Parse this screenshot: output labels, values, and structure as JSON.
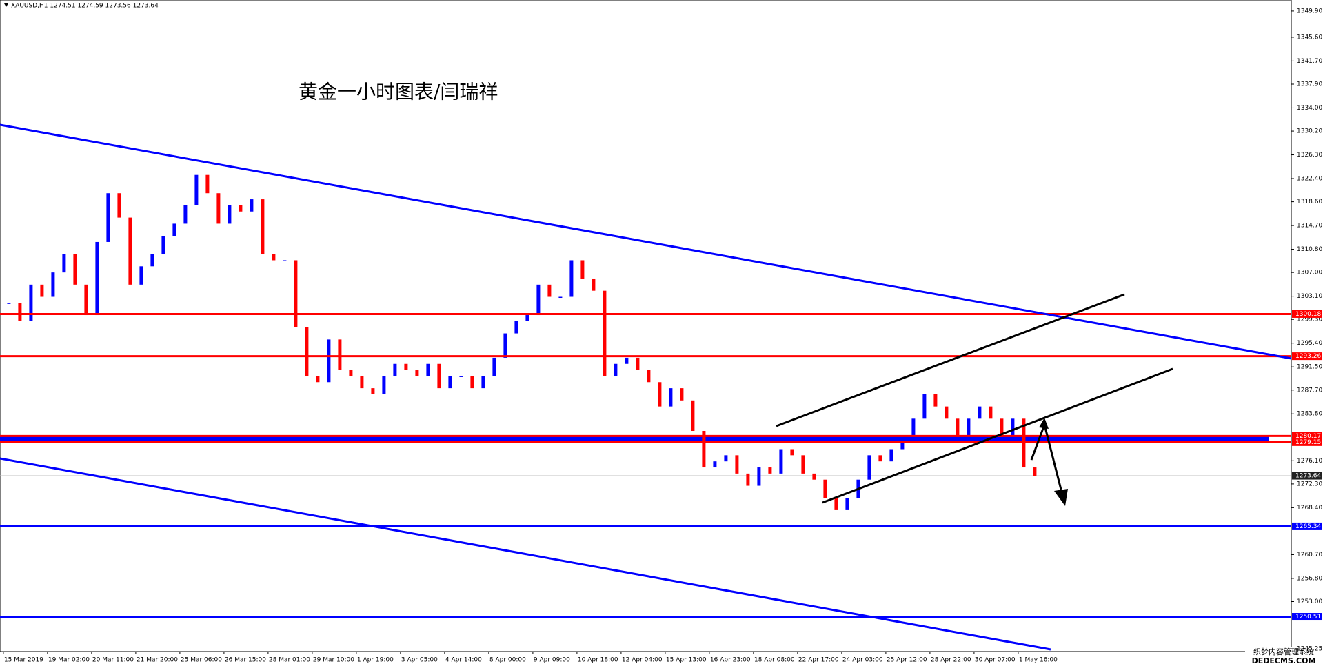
{
  "chart_data": {
    "type": "candlestick",
    "header": "XAUUSD,H1  1274.51 1274.59 1273.56 1273.64",
    "title": "黄金一小时图表/闫瑞祥",
    "up_color": "#0000ff",
    "down_color": "#ff0000",
    "categories": [
      "15 Mar 2019",
      null,
      null,
      null,
      "19 Mar 02:00",
      null,
      null,
      null,
      "20 Mar 11:00",
      null,
      null,
      null,
      "21 Mar 20:00",
      null,
      null,
      null,
      "25 Mar 06:00",
      null,
      null,
      null,
      "26 Mar 15:00",
      null,
      null,
      null,
      "28 Mar 01:00",
      null,
      null,
      null,
      "29 Mar 10:00",
      null,
      null,
      null,
      "1 Apr 19:00",
      null,
      null,
      null,
      "3 Apr 05:00",
      null,
      null,
      null,
      "4 Apr 14:00",
      null,
      null,
      null,
      "8 Apr 00:00",
      null,
      null,
      null,
      "9 Apr 09:00",
      null,
      null,
      null,
      "10 Apr 18:00",
      null,
      null,
      null,
      "12 Apr 04:00",
      null,
      null,
      null,
      "15 Apr 13:00",
      null,
      null,
      null,
      "16 Apr 23:00",
      null,
      null,
      null,
      "18 Apr 08:00",
      null,
      null,
      null,
      "22 Apr 17:00",
      null,
      null,
      null,
      "24 Apr 03:00",
      null,
      null,
      null,
      "25 Apr 12:00",
      null,
      null,
      null,
      "28 Apr 22:00",
      null,
      null,
      null,
      "30 Apr 07:00",
      null,
      null,
      null,
      "1 May 16:00",
      null
    ],
    "values": [
      1302,
      1299,
      1305,
      1303,
      1307,
      1310,
      1305,
      1300,
      1312,
      1320,
      1316,
      1305,
      1308,
      1310,
      1313,
      1315,
      1318,
      1323,
      1320,
      1315,
      1318,
      1317,
      1319,
      1310,
      1309,
      1309,
      1298,
      1290,
      1289,
      1296,
      1291,
      1290,
      1288,
      1287,
      1290,
      1292,
      1291,
      1290,
      1292,
      1288,
      1290,
      1290,
      1288,
      1290,
      1293,
      1297,
      1299,
      1300,
      1305,
      1303,
      1303,
      1309,
      1306,
      1304,
      1290,
      1292,
      1293,
      1291,
      1289,
      1285,
      1288,
      1286,
      1281,
      1275,
      1276,
      1277,
      1274,
      1272,
      1275,
      1274,
      1278,
      1277,
      1274,
      1273,
      1270,
      1268,
      1270,
      1273,
      1277,
      1276,
      1278,
      1280,
      1283,
      1287,
      1285,
      1283,
      1280,
      1283,
      1285,
      1283,
      1280,
      1283,
      1275,
      1273.64
    ],
    "ylim": [
      1244.8,
      1351.7
    ],
    "yticks": [
      {
        "value": 1349.9,
        "label": "1349.90"
      },
      {
        "value": 1345.6,
        "label": "1345.60"
      },
      {
        "value": 1341.7,
        "label": "1341.70"
      },
      {
        "value": 1337.9,
        "label": "1337.90"
      },
      {
        "value": 1334.0,
        "label": "1334.00"
      },
      {
        "value": 1330.2,
        "label": "1330.20"
      },
      {
        "value": 1326.3,
        "label": "1326.30"
      },
      {
        "value": 1322.4,
        "label": "1322.40"
      },
      {
        "value": 1318.6,
        "label": "1318.60"
      },
      {
        "value": 1314.7,
        "label": "1314.70"
      },
      {
        "value": 1310.8,
        "label": "1310.80"
      },
      {
        "value": 1307.0,
        "label": "1307.00"
      },
      {
        "value": 1303.1,
        "label": "1303.10"
      },
      {
        "value": 1299.3,
        "label": "1299.30"
      },
      {
        "value": 1295.4,
        "label": "1295.40"
      },
      {
        "value": 1291.5,
        "label": "1291.50"
      },
      {
        "value": 1287.7,
        "label": "1287.70"
      },
      {
        "value": 1283.8,
        "label": "1283.80"
      },
      {
        "value": 1276.1,
        "label": "1276.10"
      },
      {
        "value": 1272.3,
        "label": "1272.30"
      },
      {
        "value": 1268.4,
        "label": "1268.40"
      },
      {
        "value": 1260.7,
        "label": "1260.70"
      },
      {
        "value": 1256.8,
        "label": "1256.80"
      },
      {
        "value": 1253.0,
        "label": "1253.00"
      },
      1245.25
    ],
    "levels": [
      {
        "value": 1300.18,
        "color": "#ff0000"
      },
      {
        "value": 1293.26,
        "color": "#ff0000"
      },
      {
        "value": 1280.17,
        "color": "#ff0000"
      },
      {
        "value": 1279.15,
        "color": "#ff0000"
      },
      {
        "value": 1265.34,
        "color": "#0000ff"
      },
      {
        "value": 1250.51,
        "color": "#0000ff"
      }
    ],
    "band_color": "#0000ff",
    "last_price": 1273.64,
    "watermark": [
      "织梦内容管理系统",
      "DEDECMS.COM"
    ]
  }
}
